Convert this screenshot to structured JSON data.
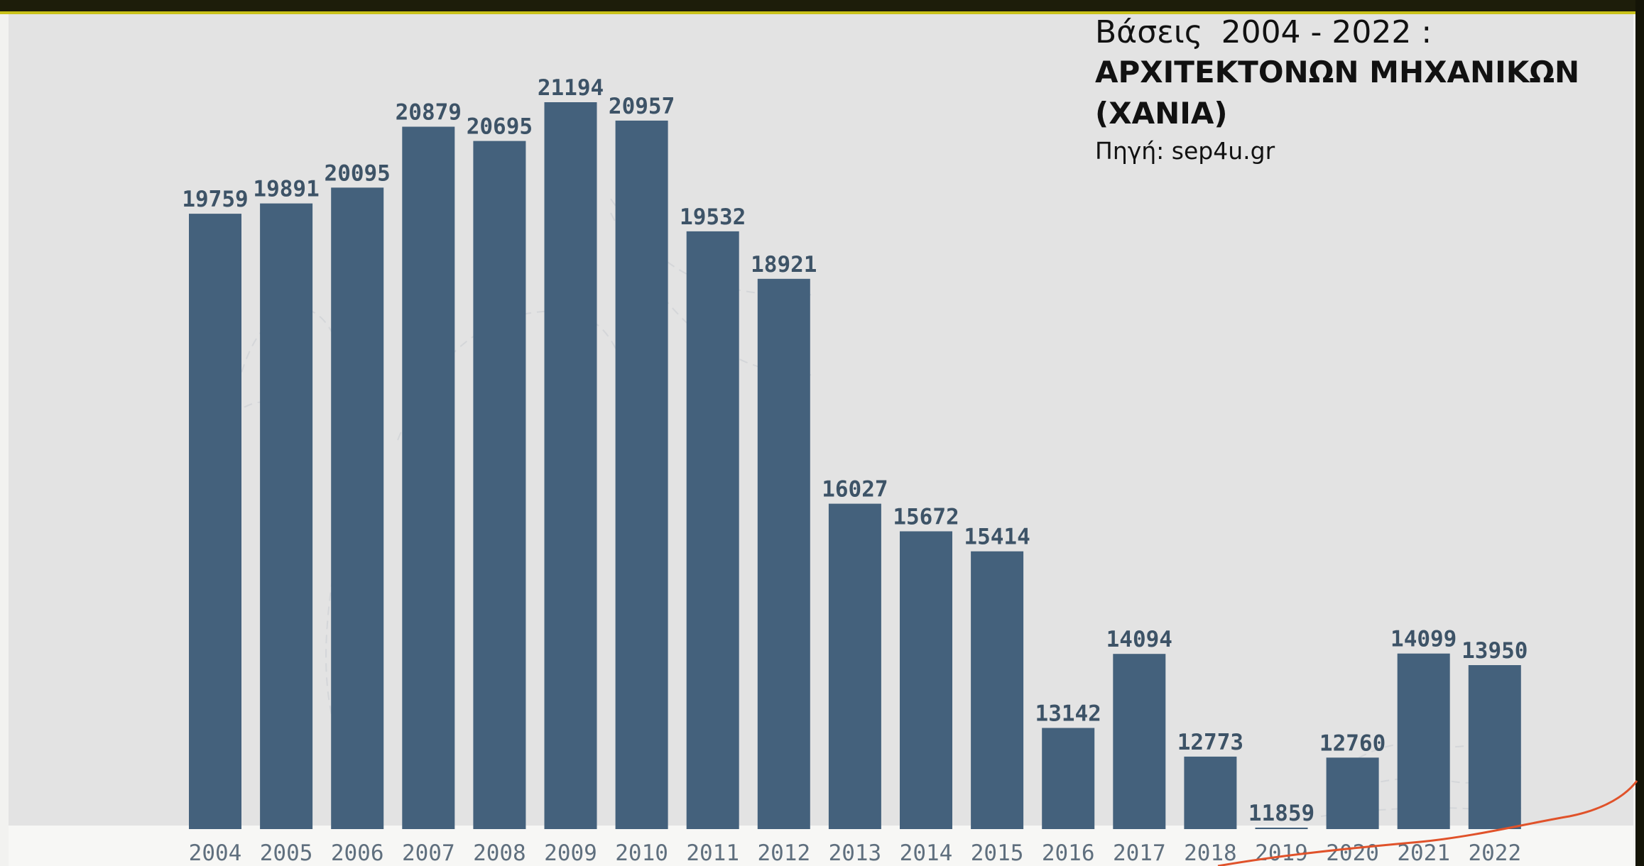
{
  "info": {
    "prefix": "Βάσεις",
    "range": "2004 - 2022 :",
    "subject": "ΑΡΧΙΤΕΚΤΟΝΩΝ ΜΗΧΑΝΙΚΩΝ (ΧΑΝΙΑ)",
    "source": "Πηγή: sep4u.gr"
  },
  "colors": {
    "bar": "#44617c",
    "panel": "#e3e3e3",
    "accent": "#c9c21a",
    "trend_line": "#e0522a"
  },
  "chart_data": {
    "type": "bar",
    "title": "Βάσεις 2004 - 2022 : ΑΡΧΙΤΕΚΤΟΝΩΝ ΜΗΧΑΝΙΚΩΝ (ΧΑΝΙΑ)",
    "xlabel": "",
    "ylabel": "",
    "categories": [
      "2004",
      "2005",
      "2006",
      "2007",
      "2008",
      "2009",
      "2010",
      "2011",
      "2012",
      "2013",
      "2014",
      "2015",
      "2016",
      "2017",
      "2018",
      "2019",
      "2020",
      "2021",
      "2022"
    ],
    "values": [
      19759,
      19891,
      20095,
      20879,
      20695,
      21194,
      20957,
      19532,
      18921,
      16027,
      15672,
      15414,
      13142,
      14094,
      12773,
      11859,
      12760,
      14099,
      13950
    ],
    "ylim": [
      11840,
      21550
    ],
    "grid": false,
    "legend": "none",
    "data_labels": true
  }
}
